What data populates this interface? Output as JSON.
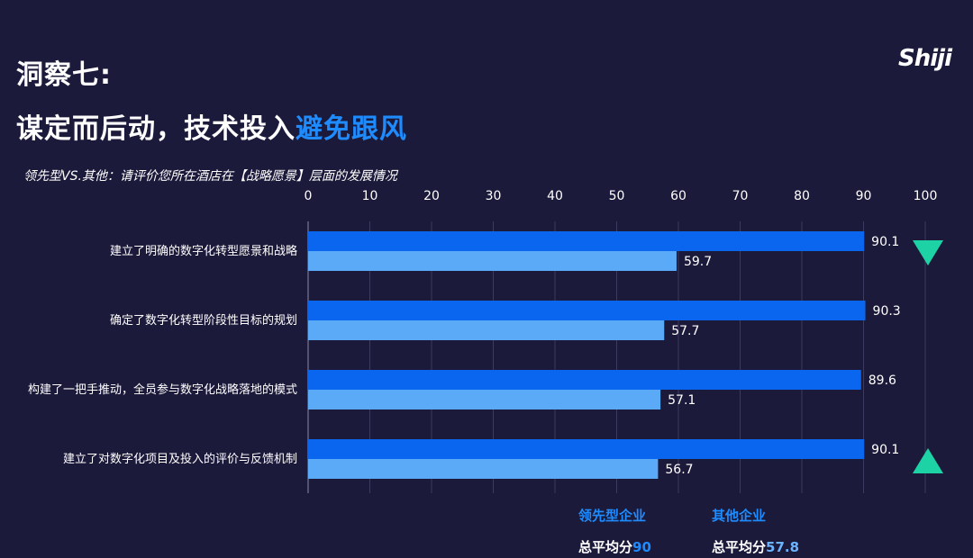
{
  "heading": {
    "line1": "洞察七:",
    "line2_plain": "谋定而后动，技术投入",
    "line2_highlight": "避免跟风"
  },
  "logo": "Shiji",
  "chart_data": {
    "type": "bar",
    "orientation": "horizontal",
    "title": "领先型VS.其他：请评价您所在酒店在【战略愿景】层面的发展情况",
    "xlim": [
      0,
      100
    ],
    "xticks": [
      "0",
      "10",
      "20",
      "30",
      "40",
      "50",
      "60",
      "70",
      "80",
      "90",
      "100"
    ],
    "categories": [
      "建立了明确的数字化转型愿景和战略",
      "确定了数字化转型阶段性目标的规划",
      "构建了一把手推动，全员参与数字化战略落地的模式",
      "建立了对数字化项目及投入的评价与反馈机制"
    ],
    "series": [
      {
        "name": "领先型企业",
        "color": "#0a66ee",
        "values": [
          90.1,
          90.3,
          89.6,
          90.1
        ]
      },
      {
        "name": "其他企业",
        "color": "#5aaaf7",
        "values": [
          59.7,
          57.7,
          57.1,
          56.7
        ]
      }
    ],
    "markers": [
      {
        "category_index": 0,
        "shape": "down-triangle",
        "color": "#1dd3a5"
      },
      {
        "category_index": 3,
        "shape": "up-triangle",
        "color": "#1dd3a5"
      }
    ],
    "grid": true
  },
  "legend": {
    "leader": {
      "name": "领先型企业",
      "avg_label": "总平均分",
      "avg_value": "90"
    },
    "other": {
      "name": "其他企业",
      "avg_label": "总平均分",
      "avg_value": "57.8"
    }
  },
  "colors": {
    "background": "#1c1a3a",
    "accent": "#1e8cff",
    "leader_avg": "#1e8cff",
    "other_avg": "#6cb4ff"
  }
}
